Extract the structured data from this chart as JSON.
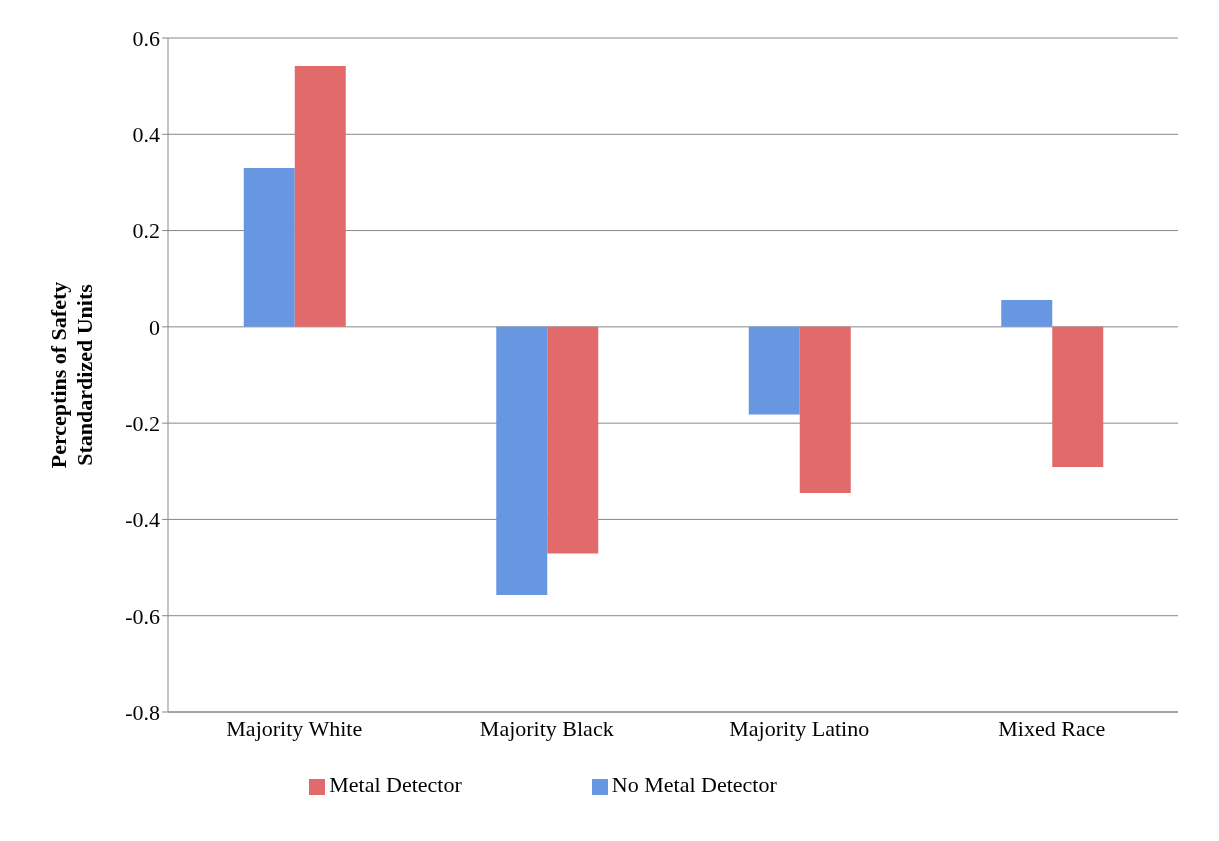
{
  "chart_data": {
    "type": "bar",
    "ylabel": "Perceptins of Safety\nStandardized Units",
    "categories": [
      "Majority White",
      "Majority Black",
      "Majority Latino",
      "Mixed Race"
    ],
    "series": [
      {
        "name": "No Metal Detector",
        "color": "#6797e0",
        "values": [
          0.33,
          -0.557,
          -0.182,
          0.056
        ]
      },
      {
        "name": "Metal Detector",
        "color": "#e26a6a",
        "values": [
          0.542,
          -0.471,
          -0.345,
          -0.291
        ]
      }
    ],
    "ylim": [
      -0.8,
      0.6
    ],
    "yticks": [
      -0.8,
      -0.6,
      -0.4,
      -0.2,
      0,
      0.2,
      0.4,
      0.6
    ],
    "grid": "y",
    "legend": "bottom"
  }
}
